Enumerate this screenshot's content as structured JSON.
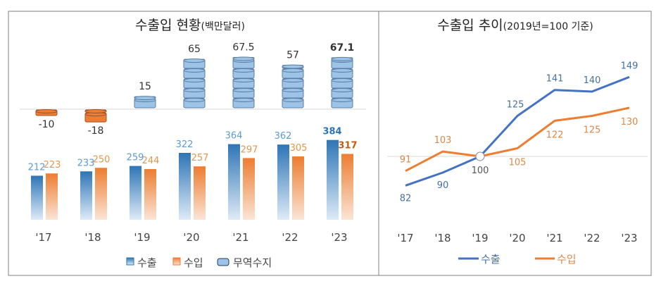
{
  "chart_data": [
    {
      "type": "bar",
      "title": "수출입 현황",
      "title_unit": "(백만달러)",
      "categories": [
        "'17",
        "'18",
        "'19",
        "'20",
        "'21",
        "'22",
        "'23"
      ],
      "series": [
        {
          "name": "수출",
          "values": [
            212,
            233,
            259,
            322,
            364,
            362,
            384
          ],
          "color": "#2E75B6",
          "label_color": "#5B9BD5"
        },
        {
          "name": "수입",
          "values": [
            223,
            250,
            244,
            257,
            297,
            305,
            317
          ],
          "color": "#ED7D31",
          "label_color": "#E3964F"
        },
        {
          "name": "무역수지",
          "values": [
            -10,
            -18,
            15,
            65,
            67.5,
            57,
            67.1
          ],
          "pos_color": "#9DC3E6",
          "neg_color": "#ED7D31"
        }
      ],
      "highlight_last": true,
      "legend": [
        "수출",
        "수입",
        "무역수지"
      ],
      "legend_placement": "bottom",
      "grid": false
    },
    {
      "type": "line",
      "title": "수출입 추이",
      "title_unit": "(2019년=100 기준)",
      "categories": [
        "'17",
        "'18",
        "'19",
        "'20",
        "'21",
        "'22",
        "'23"
      ],
      "series": [
        {
          "name": "수출",
          "values": [
            82,
            90,
            100,
            125,
            141,
            140,
            149
          ],
          "color": "#4472C4",
          "label_color": "#44719F"
        },
        {
          "name": "수입",
          "values": [
            91,
            103,
            100,
            105,
            122,
            125,
            130
          ],
          "color": "#ED7D31",
          "label_color": "#D9894A"
        }
      ],
      "reference_line": 100,
      "legend": [
        "수출",
        "수입"
      ],
      "legend_placement": "bottom",
      "grid": false
    }
  ]
}
